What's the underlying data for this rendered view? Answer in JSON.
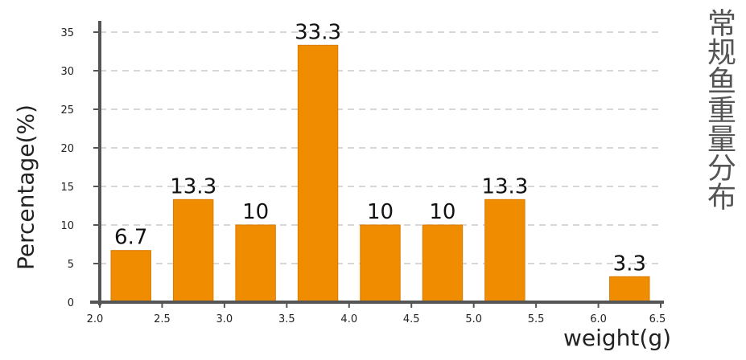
{
  "chart_data": {
    "type": "bar",
    "title": "常规鱼重量分布",
    "xlabel": "weight(g)",
    "ylabel": "Percentage(%)",
    "ylim": [
      0,
      35
    ],
    "xlim": [
      2.0,
      6.5
    ],
    "grid": true,
    "y_ticks": [
      "0",
      "5",
      "10",
      "15",
      "20",
      "25",
      "30",
      "35"
    ],
    "x_ticks": [
      "2.0",
      "2.5",
      "3.0",
      "3.5",
      "4.0",
      "4.5",
      "5.0",
      "5.5",
      "6.0",
      "6.5"
    ],
    "bars": [
      {
        "x0": 2.0,
        "x1": 2.5,
        "value": 6.7,
        "label": "6.7"
      },
      {
        "x0": 2.5,
        "x1": 3.0,
        "value": 13.3,
        "label": "13.3"
      },
      {
        "x0": 3.0,
        "x1": 3.5,
        "value": 10,
        "label": "10"
      },
      {
        "x0": 3.5,
        "x1": 4.0,
        "value": 33.3,
        "label": "33.3"
      },
      {
        "x0": 4.0,
        "x1": 4.5,
        "value": 10,
        "label": "10"
      },
      {
        "x0": 4.5,
        "x1": 5.0,
        "value": 10,
        "label": "10"
      },
      {
        "x0": 5.0,
        "x1": 5.5,
        "value": 13.3,
        "label": "13.3"
      },
      {
        "x0": 6.0,
        "x1": 6.5,
        "value": 3.3,
        "label": "3.3"
      }
    ],
    "bar_color": "#f08c00",
    "axis_color": "#555555",
    "grid_color": "#cccccc"
  }
}
